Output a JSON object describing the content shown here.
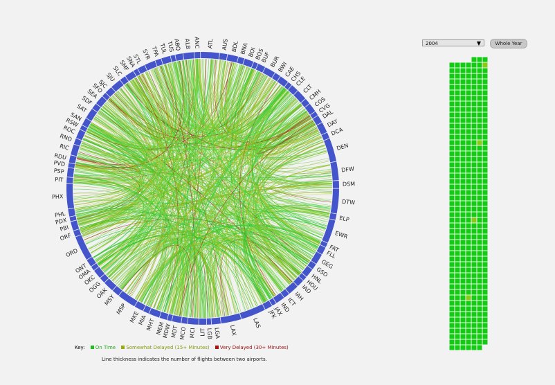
{
  "controls": {
    "year_value": "2004",
    "whole_year_label": "Whole Year"
  },
  "key": {
    "title": "Key:",
    "on_time": "On Time",
    "somewhat": "Somewhat Delayed (15+ Minutes)",
    "very": "Very Delayed (30+ Minutes)",
    "note": "Line thickness indicates the number of flights between two airports."
  },
  "colors": {
    "ring": "#4455cc",
    "on_time": "#22bb22",
    "somewhat": "#99aa11",
    "very": "#aa1111",
    "calendar_cell": "#11cc11",
    "calendar_cell_partial": "#88cc11"
  },
  "chart_data": {
    "type": "chord",
    "airports": [
      "ATL",
      "AUS",
      "BDL",
      "BNA",
      "BOI",
      "BOS",
      "BUF",
      "BUR",
      "BWI",
      "CAE",
      "CHS",
      "CLE",
      "CLT",
      "CMH",
      "COS",
      "CVG",
      "DAL",
      "DAY",
      "DCA",
      "DEN",
      "DFW",
      "DSM",
      "DTW",
      "ELP",
      "EWR",
      "FAT",
      "FLL",
      "GEG",
      "GSO",
      "HNL",
      "HOU",
      "IAD",
      "IAH",
      "ICT",
      "IND",
      "JAX",
      "JFK",
      "LAS",
      "LAX",
      "LGA",
      "LGB",
      "LIT",
      "MCI",
      "MCO",
      "MDT",
      "MDW",
      "MEM",
      "MHT",
      "MIA",
      "MKE",
      "MSP",
      "MSY",
      "OAK",
      "OGG",
      "OKC",
      "OMA",
      "ONT",
      "ORD",
      "ORF",
      "PBI",
      "PDX",
      "PHL",
      "PHX",
      "PIT",
      "PSP",
      "PVD",
      "RDU",
      "RIC",
      "RNO",
      "ROC",
      "RSW",
      "SAN",
      "SAT",
      "SDF",
      "SEA",
      "SFO",
      "SJC",
      "SJU",
      "SLC",
      "SMF",
      "SNA",
      "STL",
      "SYR",
      "TPA",
      "TUL",
      "TUS",
      "ABQ",
      "ALB",
      "ANC"
    ],
    "calendar": {
      "year": "2004",
      "week_rows": 53,
      "days_per_week": 7,
      "first_row_offset": 4,
      "last_row_days": 6
    }
  }
}
